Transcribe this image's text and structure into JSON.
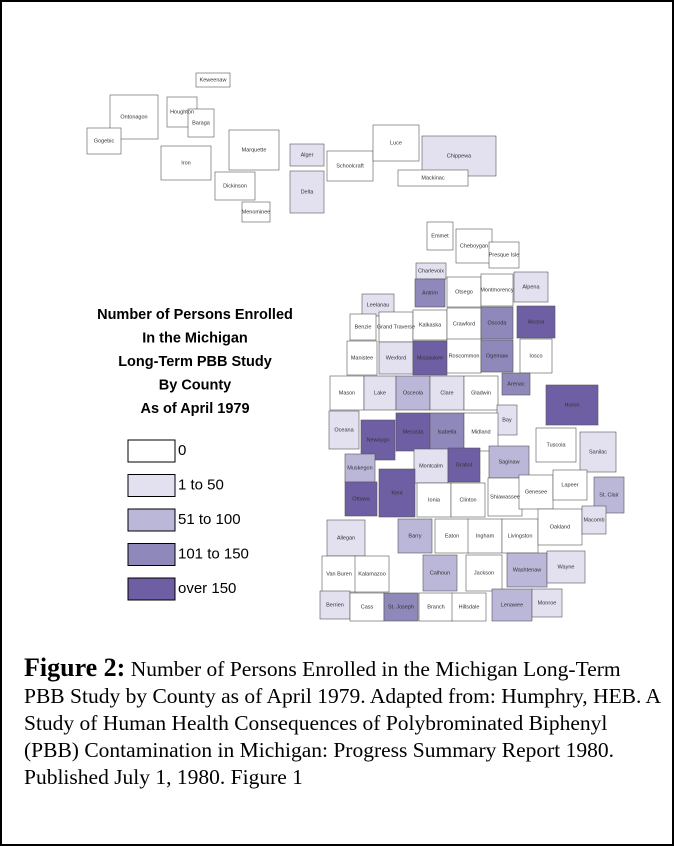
{
  "map": {
    "title_lines": [
      "Number of Persons Enrolled",
      "In the Michigan",
      "Long-Term PBB Study",
      "By County",
      "As of April 1979"
    ],
    "legend": [
      {
        "label": "0",
        "color": "#ffffff"
      },
      {
        "label": "1 to 50",
        "color": "#e3e1f0"
      },
      {
        "label": "51 to 100",
        "color": "#bbb7d9"
      },
      {
        "label": "101 to 150",
        "color": "#8e88bb"
      },
      {
        "label": "over 150",
        "color": "#6e5ea3"
      }
    ],
    "counties": [
      {
        "name": "Keweenaw",
        "class": 0
      },
      {
        "name": "Houghton",
        "class": 0
      },
      {
        "name": "Ontonagon",
        "class": 0
      },
      {
        "name": "Baraga",
        "class": 0
      },
      {
        "name": "Gogebic",
        "class": 0
      },
      {
        "name": "Iron",
        "class": 0
      },
      {
        "name": "Marquette",
        "class": 0
      },
      {
        "name": "Alger",
        "class": 1
      },
      {
        "name": "Schoolcraft",
        "class": 0
      },
      {
        "name": "Luce",
        "class": 0
      },
      {
        "name": "Chippewa",
        "class": 1
      },
      {
        "name": "Mackinac",
        "class": 0
      },
      {
        "name": "Dickinson",
        "class": 0
      },
      {
        "name": "Delta",
        "class": 1
      },
      {
        "name": "Menominee",
        "class": 0
      },
      {
        "name": "Emmet",
        "class": 0
      },
      {
        "name": "Cheboygan",
        "class": 0
      },
      {
        "name": "Presque Isle",
        "class": 0
      },
      {
        "name": "Charlevoix",
        "class": 1
      },
      {
        "name": "Antrim",
        "class": 3
      },
      {
        "name": "Otsego",
        "class": 0
      },
      {
        "name": "Montmorency",
        "class": 0
      },
      {
        "name": "Alpena",
        "class": 1
      },
      {
        "name": "Leelanau",
        "class": 1
      },
      {
        "name": "Benzie",
        "class": 0
      },
      {
        "name": "Grand Traverse",
        "class": 0
      },
      {
        "name": "Kalkaska",
        "class": 0
      },
      {
        "name": "Crawford",
        "class": 0
      },
      {
        "name": "Oscoda",
        "class": 3
      },
      {
        "name": "Alcona",
        "class": 4
      },
      {
        "name": "Manistee",
        "class": 0
      },
      {
        "name": "Wexford",
        "class": 1
      },
      {
        "name": "Missaukee",
        "class": 4
      },
      {
        "name": "Roscommon",
        "class": 0
      },
      {
        "name": "Ogemaw",
        "class": 3
      },
      {
        "name": "Iosco",
        "class": 0
      },
      {
        "name": "Arenac",
        "class": 3
      },
      {
        "name": "Mason",
        "class": 0
      },
      {
        "name": "Lake",
        "class": 1
      },
      {
        "name": "Osceola",
        "class": 2
      },
      {
        "name": "Clare",
        "class": 1
      },
      {
        "name": "Gladwin",
        "class": 0
      },
      {
        "name": "Bay",
        "class": 1
      },
      {
        "name": "Huron",
        "class": 4
      },
      {
        "name": "Oceana",
        "class": 1
      },
      {
        "name": "Newaygo",
        "class": 4
      },
      {
        "name": "Mecosta",
        "class": 4
      },
      {
        "name": "Isabella",
        "class": 3
      },
      {
        "name": "Midland",
        "class": 0
      },
      {
        "name": "Tuscola",
        "class": 0
      },
      {
        "name": "Sanilac",
        "class": 1
      },
      {
        "name": "Muskegon",
        "class": 2
      },
      {
        "name": "Montcalm",
        "class": 1
      },
      {
        "name": "Gratiot",
        "class": 4
      },
      {
        "name": "Saginaw",
        "class": 2
      },
      {
        "name": "Ottawa",
        "class": 4
      },
      {
        "name": "Kent",
        "class": 4
      },
      {
        "name": "Ionia",
        "class": 0
      },
      {
        "name": "Clinton",
        "class": 0
      },
      {
        "name": "Shiawassee",
        "class": 0
      },
      {
        "name": "Genesee",
        "class": 0
      },
      {
        "name": "Lapeer",
        "class": 0
      },
      {
        "name": "St. Clair",
        "class": 2
      },
      {
        "name": "Allegan",
        "class": 1
      },
      {
        "name": "Barry",
        "class": 2
      },
      {
        "name": "Eaton",
        "class": 0
      },
      {
        "name": "Ingham",
        "class": 0
      },
      {
        "name": "Livingston",
        "class": 0
      },
      {
        "name": "Oakland",
        "class": 0
      },
      {
        "name": "Macomb",
        "class": 1
      },
      {
        "name": "Van Buren",
        "class": 0
      },
      {
        "name": "Kalamazoo",
        "class": 0
      },
      {
        "name": "Calhoun",
        "class": 2
      },
      {
        "name": "Jackson",
        "class": 0
      },
      {
        "name": "Washtenaw",
        "class": 2
      },
      {
        "name": "Wayne",
        "class": 1
      },
      {
        "name": "Berrien",
        "class": 1
      },
      {
        "name": "Cass",
        "class": 0
      },
      {
        "name": "St. Joseph",
        "class": 3
      },
      {
        "name": "Branch",
        "class": 0
      },
      {
        "name": "Hillsdale",
        "class": 0
      },
      {
        "name": "Lenawee",
        "class": 2
      },
      {
        "name": "Monroe",
        "class": 1
      }
    ]
  },
  "caption": {
    "label": "Figure 2:",
    "text": "Number of Persons Enrolled in the Michigan Long-Term PBB Study by County as of April 1979. Adapted from: Humphry, HEB. A Study of Human Health Consequences of Polybrominated Biphenyl (PBB) Contamination in Michigan: Progress Summary Report 1980. Published July 1, 1980. Figure 1"
  }
}
